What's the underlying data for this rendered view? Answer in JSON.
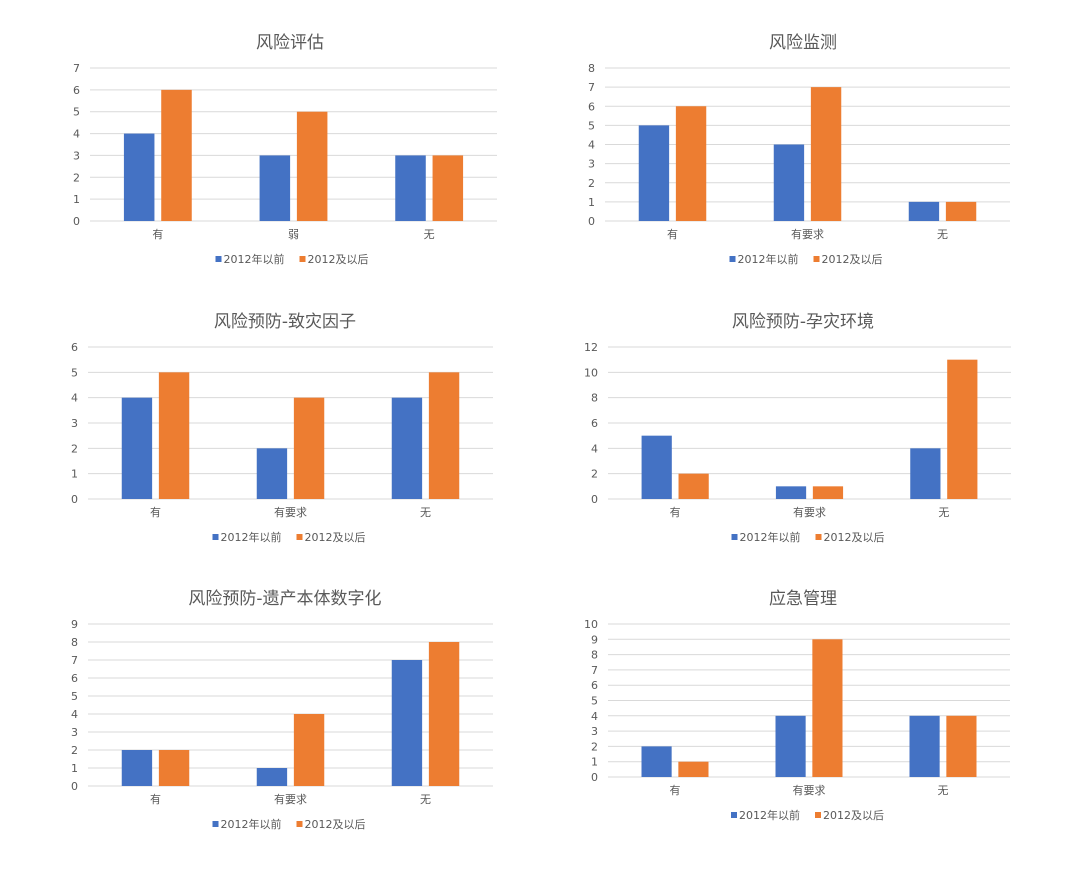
{
  "chart_data": [
    {
      "type": "bar",
      "title": "风险评估",
      "categories": [
        "有",
        "弱",
        "无"
      ],
      "series": [
        {
          "name": "2012年以前",
          "values": [
            4,
            3,
            3
          ]
        },
        {
          "name": "2012及以后",
          "values": [
            6,
            5,
            3
          ]
        }
      ],
      "ylim": [
        0,
        7
      ],
      "ystep": 1,
      "xlabel": "",
      "ylabel": "",
      "grid": true,
      "legend": "bottom"
    },
    {
      "type": "bar",
      "title": "风险监测",
      "categories": [
        "有",
        "有要求",
        "无"
      ],
      "series": [
        {
          "name": "2012年以前",
          "values": [
            5,
            4,
            1
          ]
        },
        {
          "name": "2012及以后",
          "values": [
            6,
            7,
            1
          ]
        }
      ],
      "ylim": [
        0,
        8
      ],
      "ystep": 1,
      "xlabel": "",
      "ylabel": "",
      "grid": true,
      "legend": "bottom"
    },
    {
      "type": "bar",
      "title": "风险预防-致灾因子",
      "categories": [
        "有",
        "有要求",
        "无"
      ],
      "series": [
        {
          "name": "2012年以前",
          "values": [
            4,
            2,
            4
          ]
        },
        {
          "name": "2012及以后",
          "values": [
            5,
            4,
            5
          ]
        }
      ],
      "ylim": [
        0,
        6
      ],
      "ystep": 1,
      "xlabel": "",
      "ylabel": "",
      "grid": true,
      "legend": "bottom"
    },
    {
      "type": "bar",
      "title": "风险预防-孕灾环境",
      "categories": [
        "有",
        "有要求",
        "无"
      ],
      "series": [
        {
          "name": "2012年以前",
          "values": [
            5,
            1,
            4
          ]
        },
        {
          "name": "2012及以后",
          "values": [
            2,
            1,
            11
          ]
        }
      ],
      "ylim": [
        0,
        12
      ],
      "ystep": 2,
      "xlabel": "",
      "ylabel": "",
      "grid": true,
      "legend": "bottom"
    },
    {
      "type": "bar",
      "title": "风险预防-遗产本体数字化",
      "categories": [
        "有",
        "有要求",
        "无"
      ],
      "series": [
        {
          "name": "2012年以前",
          "values": [
            2,
            1,
            7
          ]
        },
        {
          "name": "2012及以后",
          "values": [
            2,
            4,
            8
          ]
        }
      ],
      "ylim": [
        0,
        9
      ],
      "ystep": 1,
      "xlabel": "",
      "ylabel": "",
      "grid": true,
      "legend": "bottom"
    },
    {
      "type": "bar",
      "title": "应急管理",
      "categories": [
        "有",
        "有要求",
        "无"
      ],
      "series": [
        {
          "name": "2012年以前",
          "values": [
            2,
            4,
            4
          ]
        },
        {
          "name": "2012及以后",
          "values": [
            1,
            9,
            4
          ]
        }
      ],
      "ylim": [
        0,
        10
      ],
      "ystep": 1,
      "xlabel": "",
      "ylabel": "",
      "grid": true,
      "legend": "bottom"
    }
  ],
  "colors": {
    "series": [
      "#4472C4",
      "#ED7D31"
    ],
    "grid": "#D9D9D9",
    "text": "#595959"
  }
}
